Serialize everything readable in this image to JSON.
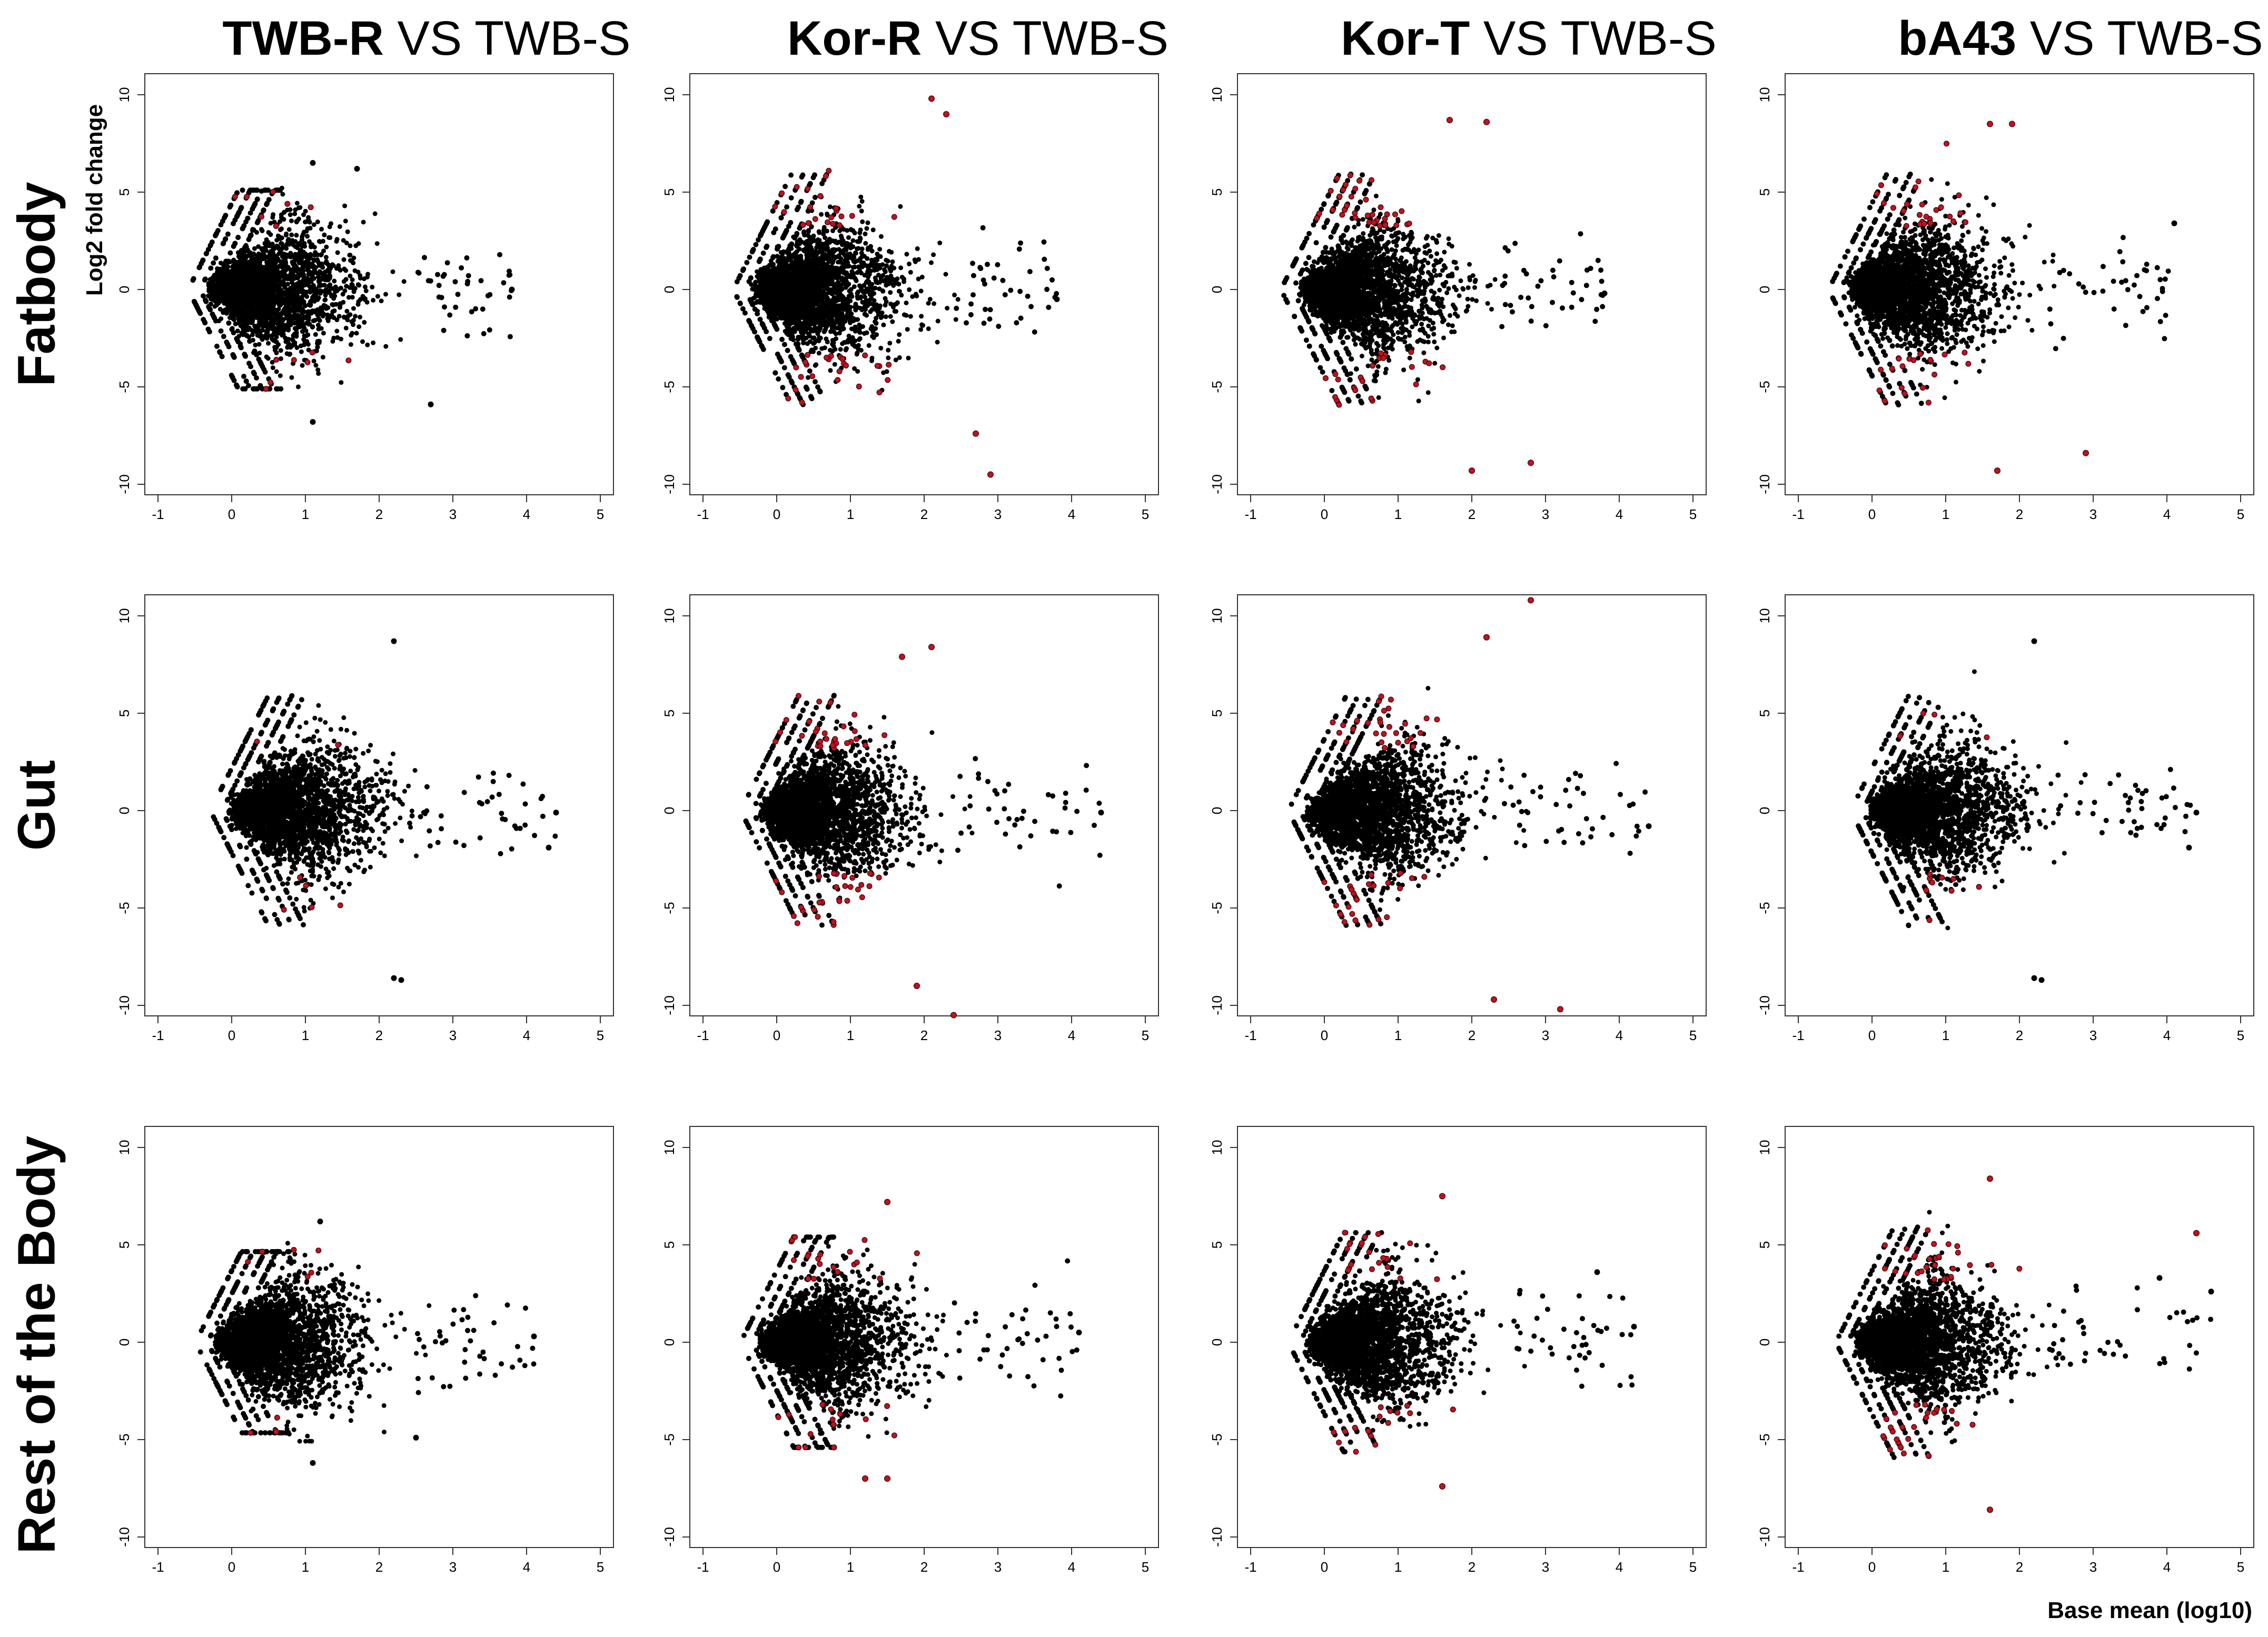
{
  "figure": {
    "column_titles": [
      {
        "bold": "TWB-R",
        "rest": " VS TWB-S"
      },
      {
        "bold": "Kor-R",
        "rest": " VS TWB-S"
      },
      {
        "bold": "Kor-T",
        "rest": " VS TWB-S"
      },
      {
        "bold": "bA43",
        "rest": " VS TWB-S"
      }
    ],
    "row_titles": [
      "Fatbody",
      "Gut",
      "Rest of the Body"
    ],
    "y_axis_label": "Log2 fold change",
    "x_axis_label": "Base mean (log10)",
    "colors": {
      "non_significant": "#000000",
      "significant": "#c0111f",
      "frame": "#333333"
    }
  },
  "chart_data": {
    "type": "scatter",
    "subtype": "MA plot grid (3 tissues x 4 comparisons)",
    "xlabel": "Base mean (log10)",
    "ylabel": "Log2 fold change",
    "xlim": [
      -1,
      5
    ],
    "ylim": [
      -10,
      10
    ],
    "x_ticks": [
      -1,
      0,
      1,
      2,
      3,
      4,
      5
    ],
    "y_ticks": [
      -10,
      -5,
      0,
      5,
      10
    ],
    "grid": false,
    "note": "Individual gene points are not labeled; each panel is summarized by its main-cloud extents and the approximate extreme points read from the axes. Red points denote significantly differentially expressed genes.",
    "panels": [
      {
        "row": "Fatbody",
        "comparison": "TWB-R VS TWB-S",
        "x_range": [
          -0.6,
          3.8
        ],
        "y_range": [
          -6.8,
          6.5
        ],
        "significant_share": "low",
        "extremes": [
          {
            "x": 1.1,
            "y": 6.5
          },
          {
            "x": 1.7,
            "y": 6.2
          },
          {
            "x": 2.7,
            "y": -5.9
          },
          {
            "x": 1.1,
            "y": -6.8
          },
          {
            "x": 3.8,
            "y": 0.0
          }
        ]
      },
      {
        "row": "Fatbody",
        "comparison": "Kor-R VS TWB-S",
        "x_range": [
          -0.6,
          3.8
        ],
        "y_range": [
          -9.5,
          9.8
        ],
        "significant_share": "high",
        "extremes": [
          {
            "x": 2.1,
            "y": 9.8
          },
          {
            "x": 2.3,
            "y": 9.0
          },
          {
            "x": 2.9,
            "y": -9.5
          },
          {
            "x": 2.7,
            "y": -7.4
          },
          {
            "x": 3.8,
            "y": -0.5
          }
        ]
      },
      {
        "row": "Fatbody",
        "comparison": "Kor-T VS TWB-S",
        "x_range": [
          -0.6,
          3.8
        ],
        "y_range": [
          -9.3,
          8.8
        ],
        "significant_share": "high",
        "extremes": [
          {
            "x": 1.7,
            "y": 8.7
          },
          {
            "x": 2.2,
            "y": 8.6
          },
          {
            "x": 2.0,
            "y": -9.3
          },
          {
            "x": 2.8,
            "y": -8.9
          },
          {
            "x": 3.8,
            "y": -0.2
          }
        ]
      },
      {
        "row": "Fatbody",
        "comparison": "bA43 VS TWB-S",
        "x_range": [
          -0.6,
          4.1
        ],
        "y_range": [
          -9.3,
          8.5
        ],
        "significant_share": "high",
        "extremes": [
          {
            "x": 1.6,
            "y": 8.5
          },
          {
            "x": 1.9,
            "y": 8.5
          },
          {
            "x": 1.7,
            "y": -9.3
          },
          {
            "x": 2.9,
            "y": -8.4
          },
          {
            "x": 4.1,
            "y": 3.4
          }
        ]
      },
      {
        "row": "Gut",
        "comparison": "TWB-R VS TWB-S",
        "x_range": [
          -0.3,
          4.4
        ],
        "y_range": [
          -8.7,
          8.7
        ],
        "significant_share": "low",
        "extremes": [
          {
            "x": 2.2,
            "y": 8.7
          },
          {
            "x": 2.2,
            "y": -8.6
          },
          {
            "x": 2.3,
            "y": -8.7
          },
          {
            "x": 4.4,
            "y": -0.1
          },
          {
            "x": 4.3,
            "y": -1.9
          }
        ]
      },
      {
        "row": "Gut",
        "comparison": "Kor-R VS TWB-S",
        "x_range": [
          -0.5,
          4.4
        ],
        "y_range": [
          -10.5,
          8.4
        ],
        "significant_share": "high",
        "extremes": [
          {
            "x": 1.7,
            "y": 7.9
          },
          {
            "x": 2.1,
            "y": 8.4
          },
          {
            "x": 2.4,
            "y": -10.5
          },
          {
            "x": 1.9,
            "y": -9.0
          },
          {
            "x": 4.4,
            "y": -0.1
          }
        ]
      },
      {
        "row": "Gut",
        "comparison": "Kor-T VS TWB-S",
        "x_range": [
          -0.5,
          4.4
        ],
        "y_range": [
          -10.2,
          10.8
        ],
        "significant_share": "high",
        "extremes": [
          {
            "x": 2.8,
            "y": 10.8
          },
          {
            "x": 2.2,
            "y": 8.9
          },
          {
            "x": 3.2,
            "y": -10.2
          },
          {
            "x": 2.3,
            "y": -9.7
          },
          {
            "x": 4.4,
            "y": -0.8
          }
        ]
      },
      {
        "row": "Gut",
        "comparison": "bA43 VS TWB-S",
        "x_range": [
          -0.3,
          4.4
        ],
        "y_range": [
          -8.7,
          8.7
        ],
        "significant_share": "low",
        "extremes": [
          {
            "x": 2.2,
            "y": 8.7
          },
          {
            "x": 2.2,
            "y": -8.6
          },
          {
            "x": 2.3,
            "y": -8.7
          },
          {
            "x": 4.4,
            "y": -0.1
          },
          {
            "x": 4.3,
            "y": -1.9
          }
        ]
      },
      {
        "row": "Rest of the Body",
        "comparison": "TWB-R VS TWB-S",
        "x_range": [
          -0.5,
          4.1
        ],
        "y_range": [
          -6.2,
          6.2
        ],
        "significant_share": "low",
        "extremes": [
          {
            "x": 1.2,
            "y": 6.2
          },
          {
            "x": 1.1,
            "y": -6.2
          },
          {
            "x": 2.5,
            "y": -4.9
          },
          {
            "x": 4.1,
            "y": 0.3
          }
        ]
      },
      {
        "row": "Rest of the Body",
        "comparison": "Kor-R VS TWB-S",
        "x_range": [
          -0.5,
          4.1
        ],
        "y_range": [
          -7.0,
          7.2
        ],
        "significant_share": "medium",
        "extremes": [
          {
            "x": 1.5,
            "y": 7.2
          },
          {
            "x": 1.2,
            "y": -7.0
          },
          {
            "x": 1.5,
            "y": -7.0
          },
          {
            "x": 4.1,
            "y": 0.5
          }
        ]
      },
      {
        "row": "Rest of the Body",
        "comparison": "Kor-T VS TWB-S",
        "x_range": [
          -0.5,
          4.2
        ],
        "y_range": [
          -7.4,
          7.5
        ],
        "significant_share": "high",
        "extremes": [
          {
            "x": 1.6,
            "y": 7.5
          },
          {
            "x": 1.6,
            "y": -7.4
          },
          {
            "x": 3.7,
            "y": 3.6
          },
          {
            "x": 4.2,
            "y": 0.8
          }
        ]
      },
      {
        "row": "Rest of the Body",
        "comparison": "bA43 VS TWB-S",
        "x_range": [
          -0.5,
          4.6
        ],
        "y_range": [
          -8.6,
          8.4
        ],
        "significant_share": "high",
        "extremes": [
          {
            "x": 1.6,
            "y": 8.4
          },
          {
            "x": 1.6,
            "y": -8.6
          },
          {
            "x": 4.4,
            "y": 5.6
          },
          {
            "x": 4.6,
            "y": 2.6
          },
          {
            "x": 3.9,
            "y": 3.3
          }
        ]
      }
    ]
  }
}
